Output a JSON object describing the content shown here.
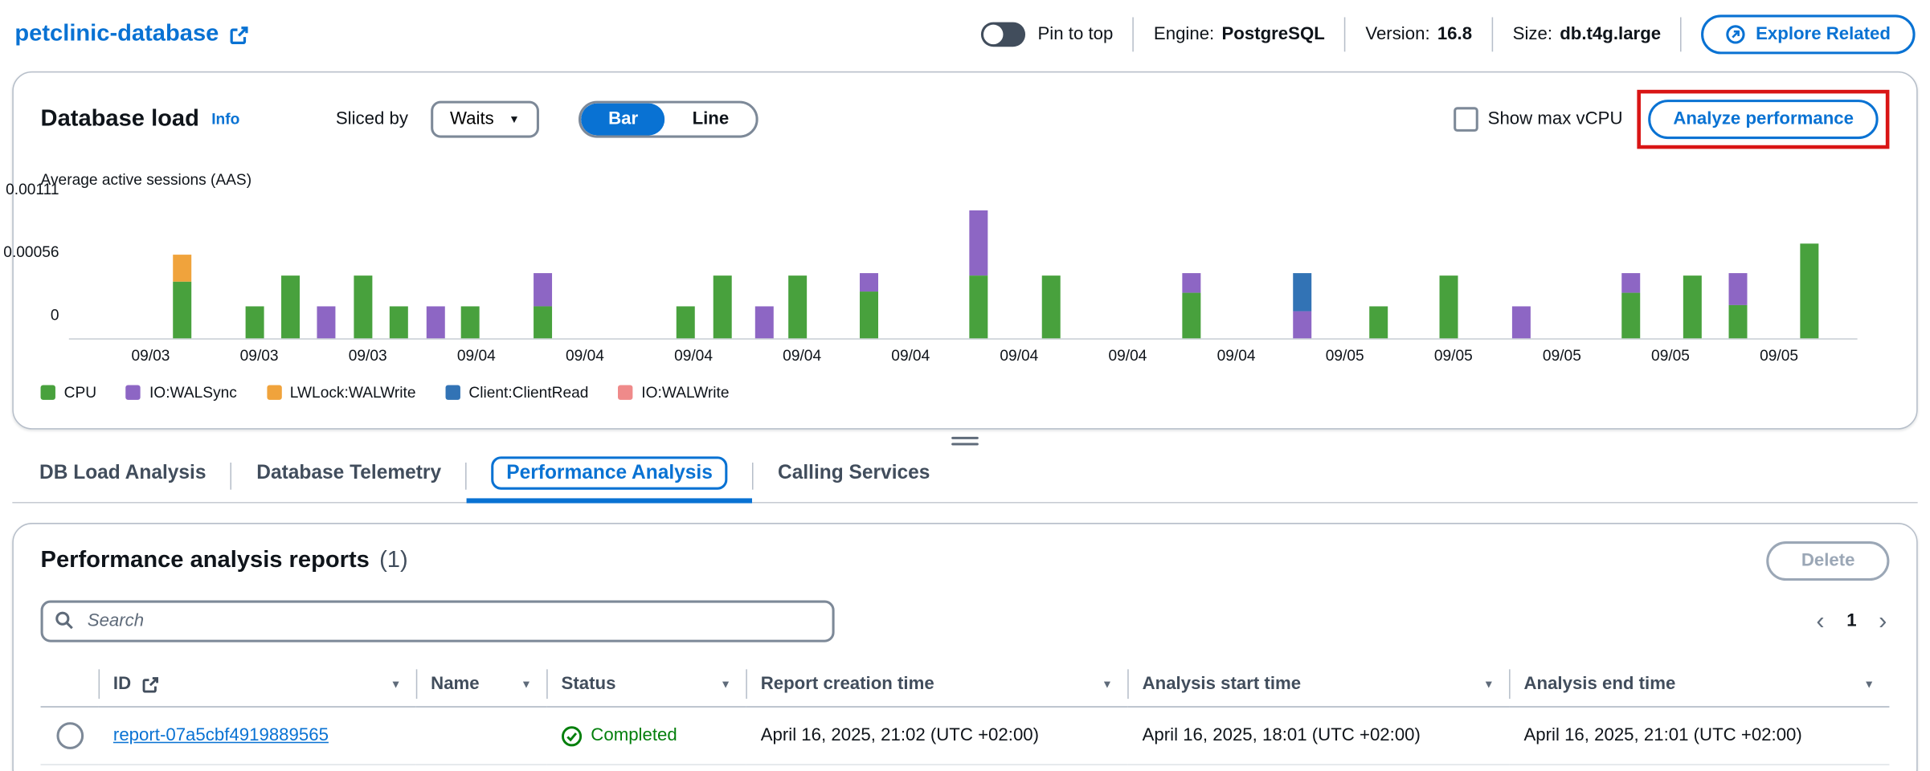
{
  "header": {
    "title": "petclinic-database",
    "pin_toggle_label": "Pin to top",
    "meta": [
      {
        "label": "Engine:",
        "value": "PostgreSQL"
      },
      {
        "label": "Version:",
        "value": "16.8"
      },
      {
        "label": "Size:",
        "value": "db.t4g.large"
      }
    ],
    "explore_related_label": "Explore Related"
  },
  "load_panel": {
    "title": "Database load",
    "info_label": "Info",
    "sliced_by_label": "Sliced by",
    "slice_selected": "Waits",
    "view_options": [
      "Bar",
      "Line"
    ],
    "view_selected": "Bar",
    "show_max_vcpu_label": "Show max vCPU",
    "analyze_button_label": "Analyze performance",
    "highlight_color": "#d91515"
  },
  "chart_data": {
    "type": "bar",
    "stacked": true,
    "ylabel": "Average active sessions (AAS)",
    "ylim": [
      0,
      0.0012
    ],
    "yticks": [
      0,
      0.00056,
      0.00111
    ],
    "ytick_labels": [
      "0",
      "0.00056",
      "0.00111"
    ],
    "x_tick_labels": [
      "09/03",
      "09/03",
      "09/03",
      "09/04",
      "09/04",
      "09/04",
      "09/04",
      "09/04",
      "09/04",
      "09/04",
      "09/04",
      "09/05",
      "09/05",
      "09/05",
      "09/05",
      "09/05"
    ],
    "legend": [
      "CPU",
      "IO:WALSync",
      "LWLock:WALWrite",
      "Client:ClientRead",
      "IO:WALWrite"
    ],
    "series_colors": {
      "CPU": "#48a13d",
      "IO:WALSync": "#8d66c4",
      "LWLock:WALWrite": "#f0a33c",
      "Client:ClientRead": "#3273b5",
      "IO:WALWrite": "#ef8a8a"
    },
    "bars": [
      {
        "x": 0.0635,
        "segments": [
          [
            "CPU",
            0.0005
          ],
          [
            "IO:WALSync",
            0
          ],
          [
            "LWLock:WALWrite",
            0.00024
          ]
        ]
      },
      {
        "x": 0.1038,
        "segments": [
          [
            "CPU",
            0.00028
          ]
        ]
      },
      {
        "x": 0.1242,
        "segments": [
          [
            "CPU",
            0.00056
          ]
        ]
      },
      {
        "x": 0.144,
        "segments": [
          [
            "IO:WALSync",
            0.00028
          ]
        ]
      },
      {
        "x": 0.1645,
        "segments": [
          [
            "CPU",
            0.00056
          ]
        ]
      },
      {
        "x": 0.1843,
        "segments": [
          [
            "CPU",
            0.00028
          ]
        ]
      },
      {
        "x": 0.2048,
        "segments": [
          [
            "IO:WALSync",
            0.00028
          ]
        ]
      },
      {
        "x": 0.2246,
        "segments": [
          [
            "CPU",
            0.00028
          ]
        ]
      },
      {
        "x": 0.2648,
        "segments": [
          [
            "CPU",
            0.00028
          ],
          [
            "IO:WALSync",
            0.0003
          ]
        ]
      },
      {
        "x": 0.3447,
        "segments": [
          [
            "CPU",
            0.00028
          ]
        ]
      },
      {
        "x": 0.3652,
        "segments": [
          [
            "CPU",
            0.00056
          ]
        ]
      },
      {
        "x": 0.3891,
        "segments": [
          [
            "IO:WALSync",
            0.00028
          ]
        ]
      },
      {
        "x": 0.4075,
        "segments": [
          [
            "CPU",
            0.00056
          ]
        ]
      },
      {
        "x": 0.4471,
        "segments": [
          [
            "CPU",
            0.00042
          ],
          [
            "IO:WALSync",
            0.00016
          ]
        ]
      },
      {
        "x": 0.5085,
        "segments": [
          [
            "CPU",
            0.00056
          ],
          [
            "IO:WALSync",
            0.00057
          ]
        ]
      },
      {
        "x": 0.5495,
        "segments": [
          [
            "CPU",
            0.00056
          ]
        ]
      },
      {
        "x": 0.628,
        "segments": [
          [
            "CPU",
            0.0004
          ],
          [
            "IO:WALSync",
            0.00018
          ]
        ]
      },
      {
        "x": 0.6894,
        "segments": [
          [
            "IO:WALSync",
            0.00024
          ],
          [
            "Client:ClientRead",
            0.00034
          ]
        ]
      },
      {
        "x": 0.7324,
        "segments": [
          [
            "CPU",
            0.00028
          ]
        ]
      },
      {
        "x": 0.7713,
        "segments": [
          [
            "CPU",
            0.00056
          ]
        ]
      },
      {
        "x": 0.8123,
        "segments": [
          [
            "IO:WALSync",
            0.00028
          ]
        ]
      },
      {
        "x": 0.8737,
        "segments": [
          [
            "CPU",
            0.0004
          ],
          [
            "IO:WALSync",
            0.00018
          ]
        ]
      },
      {
        "x": 0.9078,
        "segments": [
          [
            "CPU",
            0.00056
          ]
        ]
      },
      {
        "x": 0.9331,
        "segments": [
          [
            "CPU",
            0.0003
          ],
          [
            "IO:WALSync",
            0.00028
          ]
        ]
      },
      {
        "x": 0.9734,
        "segments": [
          [
            "CPU",
            0.00084
          ]
        ]
      }
    ]
  },
  "tabs": {
    "items": [
      "DB Load Analysis",
      "Database Telemetry",
      "Performance Analysis",
      "Calling Services"
    ],
    "active": "Performance Analysis"
  },
  "reports": {
    "title": "Performance analysis reports",
    "count": "(1)",
    "delete_button_label": "Delete",
    "search_placeholder": "Search",
    "pagination": {
      "current_page": "1"
    },
    "table": {
      "columns": [
        "ID",
        "Name",
        "Status",
        "Report creation time",
        "Analysis start time",
        "Analysis end time"
      ],
      "rows": [
        {
          "id": "report-07a5cbf4919889565",
          "name": "",
          "status": "Completed",
          "report_creation_time": "April 16, 2025, 21:02 (UTC +02:00)",
          "analysis_start_time": "April 16, 2025, 18:01 (UTC +02:00)",
          "analysis_end_time": "April 16, 2025, 21:01 (UTC +02:00)"
        }
      ]
    }
  },
  "status_colors": {
    "success": "#037f0c"
  }
}
